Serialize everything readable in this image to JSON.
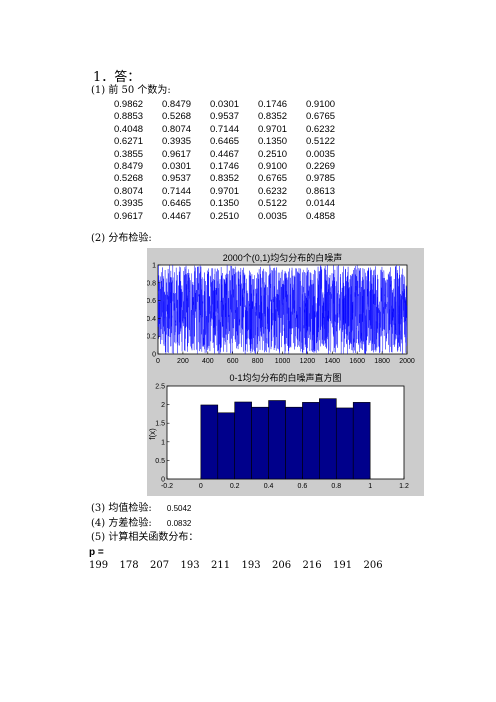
{
  "heading": "1．答：",
  "section1": {
    "label": "(1)  前 50 个数为:"
  },
  "numbers": [
    [
      "0.9862",
      "0.8479",
      "0.0301",
      "0.1746",
      "0.9100"
    ],
    [
      "0.8853",
      "0.5268",
      "0.9537",
      "0.8352",
      "0.6765"
    ],
    [
      "0.4048",
      "0.8074",
      "0.7144",
      "0.9701",
      "0.6232"
    ],
    [
      "0.6271",
      "0.3935",
      "0.6465",
      "0.1350",
      "0.5122"
    ],
    [
      "0.3855",
      "0.9617",
      "0.4467",
      "0.2510",
      "0.0035"
    ],
    [
      "0.8479",
      "0.0301",
      "0.1746",
      "0.9100",
      "0.2269"
    ],
    [
      "0.5268",
      "0.9537",
      "0.8352",
      "0.6765",
      "0.9785"
    ],
    [
      "0.8074",
      "0.7144",
      "0.9701",
      "0.6232",
      "0.8613"
    ],
    [
      "0.3935",
      "0.6465",
      "0.1350",
      "0.5122",
      "0.0144"
    ],
    [
      "0.9617",
      "0.4467",
      "0.2510",
      "0.0035",
      "0.4858"
    ]
  ],
  "section2": {
    "label": "(2)  分布检验:"
  },
  "chart_data": [
    {
      "type": "line",
      "title": "2000个(0,1)均匀分布的白噪声",
      "xlim": [
        0,
        2000
      ],
      "ylim": [
        0,
        1
      ],
      "x_ticks": [
        "0",
        "200",
        "400",
        "600",
        "800",
        "1000",
        "1200",
        "1400",
        "1600",
        "1800",
        "2000"
      ],
      "y_ticks": [
        "0",
        "0.2",
        "0.4",
        "0.6",
        "0.8",
        "1"
      ],
      "series_color": "#0000ff",
      "n_points": 2000
    },
    {
      "type": "bar",
      "title": "0-1均匀分布的白噪声直方图",
      "ylabel": "f(x)",
      "xlim": [
        -0.2,
        1.2
      ],
      "ylim": [
        0,
        2.5
      ],
      "x_ticks": [
        "-0.2",
        "0",
        "0.2",
        "0.4",
        "0.6",
        "0.8",
        "1",
        "1.2"
      ],
      "y_ticks": [
        "0",
        "0.5",
        "1",
        "1.5",
        "2",
        "2.5"
      ],
      "bin_width": 0.1,
      "bin_centers": [
        0.05,
        0.15,
        0.25,
        0.35,
        0.45,
        0.55,
        0.65,
        0.75,
        0.85,
        0.95
      ],
      "values": [
        1.99,
        1.78,
        2.07,
        1.93,
        2.11,
        1.93,
        2.06,
        2.16,
        1.91,
        2.06
      ],
      "bar_color": "#00008b"
    }
  ],
  "section3": {
    "label": "(3)  均值检验:",
    "value": "0.5042"
  },
  "section4": {
    "label": "(4)  方差检验:",
    "value": "0.0832"
  },
  "section5": {
    "label": "(5)  计算相关函数分布："
  },
  "p_label": "p =",
  "p_values": [
    "199",
    "178",
    "207",
    "193",
    "211",
    "193",
    "206",
    "216",
    "191",
    "206"
  ]
}
